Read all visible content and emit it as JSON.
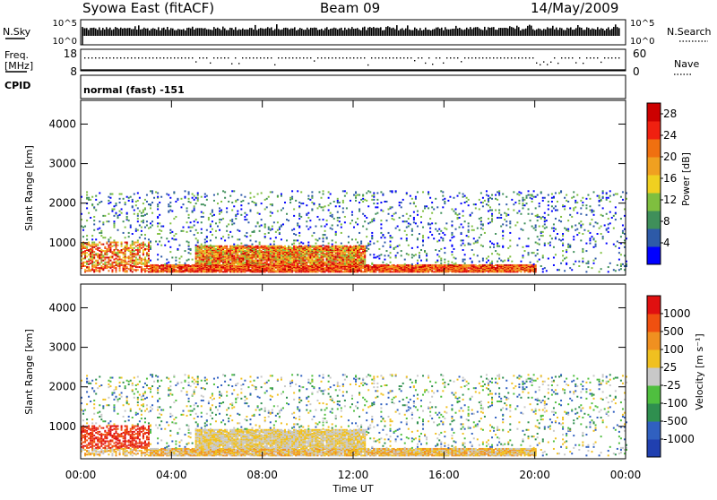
{
  "header": {
    "title": "Syowa East (fitACF)",
    "beam": "Beam 09",
    "date": "14/May/2009"
  },
  "sky_panel": {
    "left_label": "N.Sky",
    "right_label": "N.Search",
    "left_ticks": [
      "10^5",
      "10^0"
    ],
    "right_ticks": [
      "10^5",
      "10^0"
    ]
  },
  "freq_panel": {
    "left_label_1": "Freq.",
    "left_label_2": "[MHz]",
    "left_ticks": [
      "18",
      "8"
    ],
    "right_ticks": [
      "60",
      "0"
    ],
    "right_label": "Nave"
  },
  "cpid_panel": {
    "label": "CPID",
    "mode": "normal (fast) -151"
  },
  "chart_data": [
    {
      "type": "heatmap",
      "name": "Power",
      "xlabel": "",
      "ylabel": "Slant Range [km]",
      "x_range_hours": [
        0,
        24
      ],
      "ylim": [
        180,
        4600
      ],
      "yticks": [
        1000,
        2000,
        3000,
        4000
      ],
      "colorbar": {
        "label": "Power [dB]",
        "ticks": [
          4,
          8,
          12,
          16,
          20,
          24,
          28
        ],
        "range": [
          0,
          30
        ],
        "colors": [
          "#0000ff",
          "#2d5aa8",
          "#3f8f5a",
          "#7fbf3f",
          "#f0d020",
          "#f0a020",
          "#f07010",
          "#f02010",
          "#cc0000"
        ]
      }
    },
    {
      "type": "heatmap",
      "name": "Velocity",
      "xlabel": "Time UT",
      "ylabel": "Slant Range [km]",
      "x_range_hours": [
        0,
        24
      ],
      "xticks": [
        "00:00",
        "04:00",
        "08:00",
        "12:00",
        "16:00",
        "20:00",
        "00:00"
      ],
      "ylim": [
        180,
        4600
      ],
      "yticks": [
        1000,
        2000,
        3000,
        4000
      ],
      "colorbar": {
        "label": "Velocity [m s⁻¹]",
        "ticks": [
          "1000",
          "500",
          "100",
          "25",
          "-25",
          "-100",
          "-500",
          "-1000"
        ],
        "colors": [
          "#2040b0",
          "#3060c0",
          "#2f8f4f",
          "#4fbf3f",
          "#c8c8c8",
          "#f0c020",
          "#f09020",
          "#f05010",
          "#e01010"
        ]
      }
    }
  ]
}
